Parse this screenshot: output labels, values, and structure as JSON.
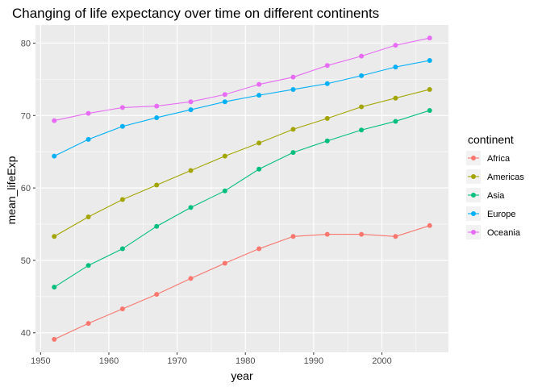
{
  "chart_data": {
    "type": "line",
    "title": "Changing of life expectancy over time on different continents",
    "xlabel": "year",
    "ylabel": "mean_lifeExp",
    "xlim": [
      1949.25,
      2009.75
    ],
    "ylim": [
      37.3,
      82.5
    ],
    "x_ticks": [
      1950,
      1960,
      1970,
      1980,
      1990,
      2000
    ],
    "y_ticks": [
      40,
      50,
      60,
      70,
      80
    ],
    "grid": true,
    "legend_title": "continent",
    "legend_position": "right",
    "x": [
      1952,
      1957,
      1962,
      1967,
      1972,
      1977,
      1982,
      1987,
      1992,
      1997,
      2002,
      2007
    ],
    "series": [
      {
        "name": "Africa",
        "color": "#F8766D",
        "values": [
          39.1,
          41.3,
          43.3,
          45.3,
          47.5,
          49.6,
          51.6,
          53.3,
          53.6,
          53.6,
          53.3,
          54.8
        ]
      },
      {
        "name": "Americas",
        "color": "#A3A500",
        "values": [
          53.3,
          56.0,
          58.4,
          60.4,
          62.4,
          64.4,
          66.2,
          68.1,
          69.6,
          71.2,
          72.4,
          73.6
        ]
      },
      {
        "name": "Asia",
        "color": "#00BF7D",
        "values": [
          46.3,
          49.3,
          51.6,
          54.7,
          57.3,
          59.6,
          62.6,
          64.9,
          66.5,
          68.0,
          69.2,
          70.7
        ]
      },
      {
        "name": "Europe",
        "color": "#00B0F6",
        "values": [
          64.4,
          66.7,
          68.5,
          69.7,
          70.8,
          71.9,
          72.8,
          73.6,
          74.4,
          75.5,
          76.7,
          77.6
        ]
      },
      {
        "name": "Oceania",
        "color": "#E76BF3",
        "values": [
          69.3,
          70.3,
          71.1,
          71.3,
          71.9,
          72.9,
          74.3,
          75.3,
          76.9,
          78.2,
          79.7,
          80.7
        ]
      }
    ]
  }
}
